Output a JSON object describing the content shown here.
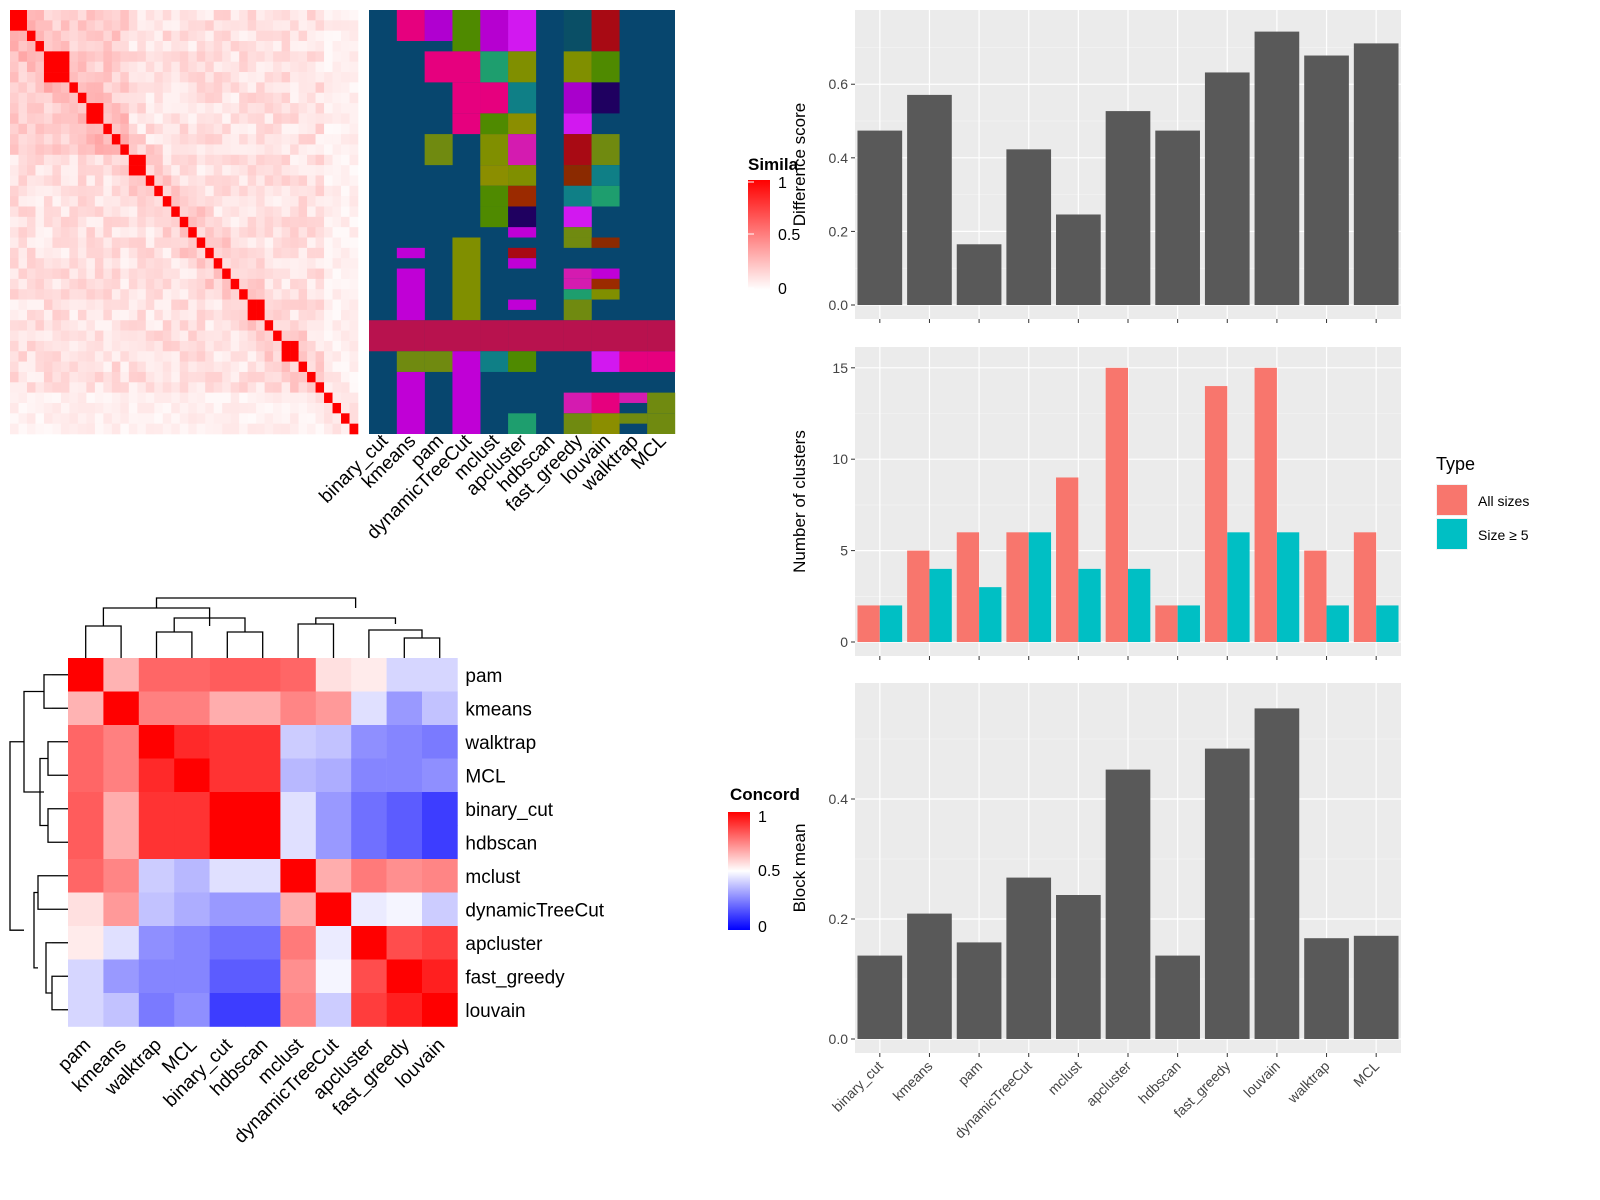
{
  "colors": {
    "panel_bg": "#ebebeb",
    "bar_gray": "#595959",
    "all_sizes": "#f8766d",
    "size_ge5": "#00bfc4",
    "sim_high": "#ff0000",
    "sim_low": "#ffffff",
    "conc_high": "#ff0000",
    "conc_mid": "#ffffff",
    "conc_low": "#0000ff",
    "heat_bg": "#07466e"
  },
  "similarity_heatmap": {
    "legend_title": "Simila",
    "legend_ticks": [
      "1",
      "0.5",
      "0"
    ],
    "n_rows": 41,
    "block_sizes": [
      2,
      1,
      1,
      3,
      1,
      1,
      2,
      1,
      1,
      1,
      2,
      1,
      1,
      1,
      1,
      1,
      1,
      1,
      1,
      1,
      1,
      1,
      1,
      2,
      1,
      1,
      2,
      1,
      1,
      1,
      1,
      1,
      1,
      1,
      1
    ],
    "methods": [
      "binary_cut",
      "kmeans",
      "pam",
      "dynamicTreeCut",
      "mclust",
      "apcluster",
      "hdbscan",
      "fast_greedy",
      "louvain",
      "walktrap",
      "MCL"
    ]
  },
  "concordance_heatmap": {
    "legend_title": "Concord",
    "legend_ticks": [
      "1",
      "0.5",
      "0"
    ],
    "labels": [
      "pam",
      "kmeans",
      "walktrap",
      "MCL",
      "binary_cut",
      "hdbscan",
      "mclust",
      "dynamicTreeCut",
      "apcluster",
      "fast_greedy",
      "louvain"
    ],
    "values": [
      [
        1.0,
        0.65,
        0.8,
        0.8,
        0.82,
        0.82,
        0.8,
        0.56,
        0.54,
        0.42,
        0.42
      ],
      [
        0.65,
        1.0,
        0.75,
        0.75,
        0.66,
        0.66,
        0.74,
        0.7,
        0.44,
        0.3,
        0.38
      ],
      [
        0.8,
        0.75,
        1.0,
        0.92,
        0.9,
        0.9,
        0.4,
        0.38,
        0.28,
        0.26,
        0.24
      ],
      [
        0.8,
        0.75,
        0.92,
        1.0,
        0.9,
        0.9,
        0.36,
        0.34,
        0.26,
        0.26,
        0.28
      ],
      [
        0.82,
        0.66,
        0.9,
        0.9,
        1.0,
        1.0,
        0.44,
        0.3,
        0.22,
        0.18,
        0.12
      ],
      [
        0.82,
        0.66,
        0.9,
        0.9,
        1.0,
        1.0,
        0.44,
        0.3,
        0.22,
        0.18,
        0.12
      ],
      [
        0.8,
        0.74,
        0.4,
        0.36,
        0.44,
        0.44,
        1.0,
        0.66,
        0.76,
        0.72,
        0.74
      ],
      [
        0.56,
        0.7,
        0.38,
        0.34,
        0.3,
        0.3,
        0.66,
        1.0,
        0.46,
        0.48,
        0.4
      ],
      [
        0.54,
        0.44,
        0.28,
        0.26,
        0.22,
        0.22,
        0.76,
        0.46,
        1.0,
        0.85,
        0.88
      ],
      [
        0.42,
        0.3,
        0.26,
        0.26,
        0.18,
        0.18,
        0.72,
        0.48,
        0.85,
        1.0,
        0.94
      ],
      [
        0.42,
        0.38,
        0.24,
        0.28,
        0.12,
        0.12,
        0.74,
        0.4,
        0.88,
        0.94,
        1.0
      ]
    ]
  },
  "chart_data": [
    {
      "type": "bar",
      "categories": [
        "binary_cut",
        "kmeans",
        "pam",
        "dynamicTreeCut",
        "mclust",
        "apcluster",
        "hdbscan",
        "fast_greedy",
        "louvain",
        "walktrap",
        "MCL"
      ],
      "values": [
        0.474,
        0.571,
        0.165,
        0.423,
        0.246,
        0.527,
        0.474,
        0.632,
        0.743,
        0.678,
        0.711
      ],
      "ylabel": "Difference score",
      "ylim": [
        0,
        0.78
      ],
      "yticks": [
        "0.0",
        "0.2",
        "0.4",
        "0.6"
      ],
      "ytick_values": [
        0,
        0.2,
        0.4,
        0.6
      ]
    },
    {
      "type": "bar",
      "categories": [
        "binary_cut",
        "kmeans",
        "pam",
        "dynamicTreeCut",
        "mclust",
        "apcluster",
        "hdbscan",
        "fast_greedy",
        "louvain",
        "walktrap",
        "MCL"
      ],
      "series": [
        {
          "name": "All sizes",
          "values": [
            2,
            5,
            6,
            6,
            9,
            15,
            2,
            14,
            15,
            5,
            6
          ]
        },
        {
          "name": "Size ≥ 5",
          "values": [
            2,
            4,
            3,
            6,
            4,
            4,
            2,
            6,
            6,
            2,
            2
          ]
        }
      ],
      "ylabel": "Number of clusters",
      "ylim": [
        0,
        15.7
      ],
      "yticks": [
        "0",
        "5",
        "10",
        "15"
      ],
      "ytick_values": [
        0,
        5,
        10,
        15
      ],
      "legend_title": "Type",
      "legend": "right"
    },
    {
      "type": "bar",
      "categories": [
        "binary_cut",
        "kmeans",
        "pam",
        "dynamicTreeCut",
        "mclust",
        "apcluster",
        "hdbscan",
        "fast_greedy",
        "louvain",
        "walktrap",
        "MCL"
      ],
      "values": [
        0.139,
        0.209,
        0.161,
        0.269,
        0.24,
        0.449,
        0.139,
        0.484,
        0.551,
        0.168,
        0.172
      ],
      "ylabel": "Block mean",
      "ylim": [
        0,
        0.58
      ],
      "yticks": [
        "0.0",
        "0.2",
        "0.4"
      ],
      "ytick_values": [
        0,
        0.2,
        0.4
      ]
    }
  ]
}
